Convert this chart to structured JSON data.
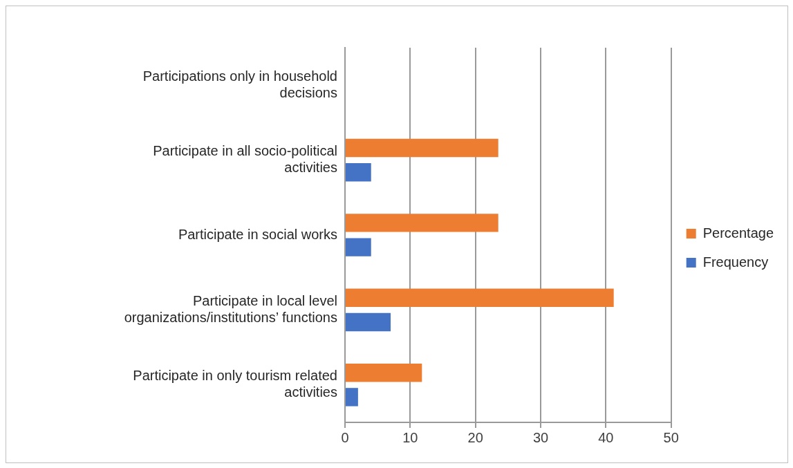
{
  "chart_data": {
    "type": "bar",
    "orientation": "horizontal",
    "categories": [
      "Participations only in household decisions",
      "Participate in all socio-political activities",
      "Participate in social works",
      "Participate in local level organizations/institutions’ functions",
      "Participate in only tourism related activities"
    ],
    "series": [
      {
        "name": "Percentage",
        "color": "#ed7d31",
        "values": [
          0,
          23.5,
          23.5,
          41.2,
          11.8
        ]
      },
      {
        "name": "Frequency",
        "color": "#4472c4",
        "values": [
          0,
          4,
          4,
          7,
          2
        ]
      }
    ],
    "xlim": [
      0,
      50
    ],
    "xticks": [
      0,
      10,
      20,
      30,
      40,
      50
    ],
    "grid": "x",
    "legend": "right"
  }
}
